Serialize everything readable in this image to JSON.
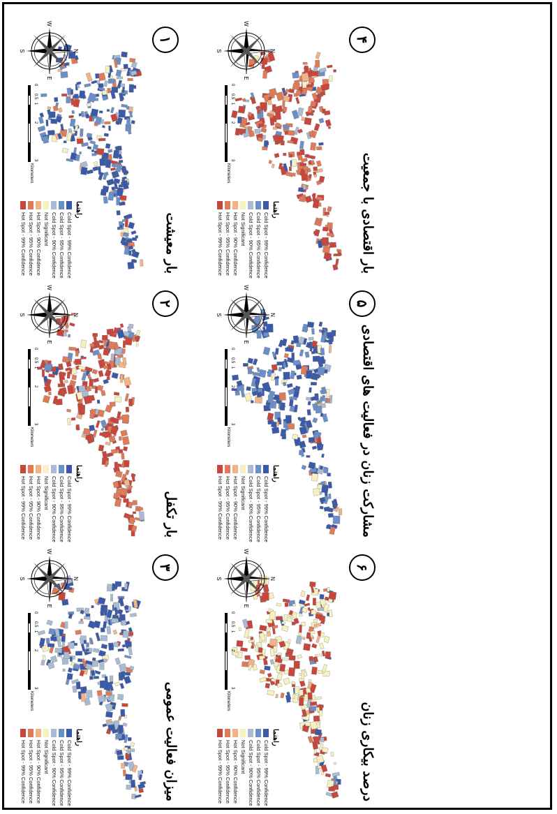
{
  "legend_title": "راهنما",
  "legend": [
    {
      "label": "Cold Spot - 99% Confidence",
      "color": "#3a59a8"
    },
    {
      "label": "Cold Spot - 95% Confidence",
      "color": "#6b8fc9"
    },
    {
      "label": "Cold Spot - 90% Confidence",
      "color": "#a9bcd4"
    },
    {
      "label": "Not Significant",
      "color": "#f7f1c0"
    },
    {
      "label": "Hot Spot - 90% Confidence",
      "color": "#f2b487"
    },
    {
      "label": "Hot Spot - 95% Confidence",
      "color": "#e07b5a"
    },
    {
      "label": "Hot Spot - 99% Confidence",
      "color": "#c8463b"
    }
  ],
  "compass": {
    "n": "N",
    "s": "S",
    "e": "E",
    "w": "W"
  },
  "scale": {
    "ticks": [
      "0",
      "0.5",
      "1",
      "2",
      "3"
    ],
    "unit": "Kilometers"
  },
  "panels": [
    {
      "number": "۱",
      "title": "بار معیشت",
      "dominant": [
        "#3a59a8",
        "#6b8fc9"
      ]
    },
    {
      "number": "۲",
      "title": "بار تکفل",
      "dominant": [
        "#c8463b",
        "#e07b5a"
      ]
    },
    {
      "number": "۳",
      "title": "میزان فعالیت عمومی",
      "dominant": [
        "#3a59a8",
        "#a9bcd4"
      ]
    },
    {
      "number": "۴",
      "title": "بار اقتصادی با جمعیت",
      "dominant": [
        "#c8463b",
        "#e07b5a"
      ]
    },
    {
      "number": "۵",
      "title": "مشارکت زنان در فعالیت های اقتصادی",
      "dominant": [
        "#3a59a8",
        "#6b8fc9"
      ]
    },
    {
      "number": "۶",
      "title": "درصد بیکاری زنان",
      "dominant": [
        "#f7f1c0",
        "#c8463b"
      ]
    }
  ]
}
